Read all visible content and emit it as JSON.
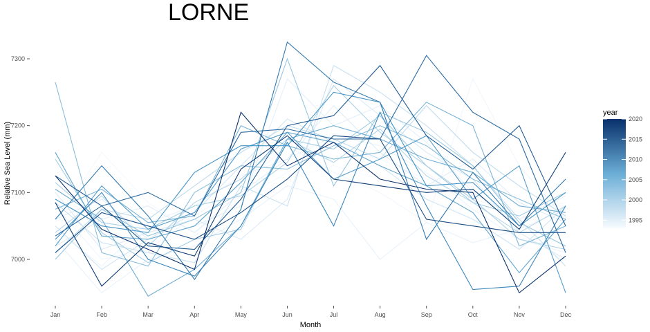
{
  "chart_data": {
    "type": "line",
    "title": "LORNE",
    "xlabel": "Month",
    "ylabel": "Relative Sea Level (mm)",
    "categories": [
      "Jan",
      "Feb",
      "Mar",
      "Apr",
      "May",
      "Jun",
      "Jul",
      "Aug",
      "Sep",
      "Oct",
      "Nov",
      "Dec"
    ],
    "yticks": [
      7000,
      7100,
      7200,
      7300
    ],
    "ylim": [
      6935,
      7335
    ],
    "grid": false,
    "legend": {
      "title": "year",
      "placement": "right",
      "ticks": [
        1995,
        2000,
        2005,
        2010,
        2015,
        2020
      ],
      "range": [
        1993,
        2020
      ],
      "color_low": "#f7fbff",
      "color_high": "#08306b"
    },
    "series": [
      {
        "year": 1993,
        "values": [
          7065,
          7045,
          7025,
          7035,
          7060,
          7120,
          7140,
          7120,
          7095,
          7060,
          7030,
          7040
        ]
      },
      {
        "year": 1994,
        "values": [
          7055,
          7160,
          7085,
          7040,
          7090,
          7130,
          7170,
          7150,
          7120,
          7090,
          7070,
          7085
        ]
      },
      {
        "year": 1995,
        "values": [
          7080,
          7000,
          7015,
          7065,
          7110,
          7170,
          7130,
          7100,
          7055,
          7270,
          7140,
          7060
        ]
      },
      {
        "year": 1996,
        "values": [
          7045,
          6990,
          7055,
          7080,
          7125,
          7150,
          7185,
          7170,
          7130,
          7075,
          7030,
          7010
        ]
      },
      {
        "year": 1997,
        "values": [
          7030,
          6950,
          7000,
          7020,
          7060,
          7110,
          7090,
          7000,
          7055,
          7025,
          7045,
          7075
        ]
      },
      {
        "year": 1998,
        "values": [
          7060,
          7090,
          7030,
          7050,
          7080,
          7270,
          7200,
          7230,
          7175,
          7100,
          7060,
          7095
        ]
      },
      {
        "year": 1999,
        "values": [
          7020,
          7060,
          7080,
          7040,
          7100,
          7150,
          7230,
          7160,
          7110,
          7150,
          7085,
          7055
        ]
      },
      {
        "year": 2000,
        "values": [
          7100,
          7015,
          7040,
          7060,
          7030,
          7090,
          7270,
          7215,
          7160,
          7120,
          7040,
          7000
        ]
      },
      {
        "year": 2001,
        "values": [
          7050,
          6985,
          7030,
          7070,
          7140,
          7210,
          7175,
          7140,
          7090,
          7060,
          7015,
          7080
        ]
      },
      {
        "year": 2002,
        "values": [
          7085,
          7025,
          7010,
          6995,
          7110,
          7080,
          7290,
          7250,
          7200,
          7140,
          7060,
          6990
        ]
      },
      {
        "year": 2003,
        "values": [
          7010,
          7075,
          7060,
          7110,
          7160,
          7200,
          7180,
          7150,
          7230,
          7160,
          7110,
          7065
        ]
      },
      {
        "year": 2004,
        "values": [
          7040,
          7095,
          7020,
          7085,
          7120,
          7180,
          7145,
          7195,
          7125,
          7085,
          7040,
          7080
        ]
      },
      {
        "year": 2005,
        "values": [
          7115,
          7055,
          7045,
          7080,
          7095,
          7145,
          7260,
          7190,
          7140,
          7090,
          7030,
          7015
        ]
      },
      {
        "year": 2006,
        "values": [
          7150,
          7040,
          6995,
          7030,
          7045,
          7180,
          7165,
          7215,
          7140,
          7085,
          7065,
          7100
        ]
      },
      {
        "year": 2007,
        "values": [
          7000,
          7075,
          7035,
          7060,
          7100,
          7300,
          7110,
          7220,
          7190,
          7140,
          7055,
          7020
        ]
      },
      {
        "year": 2008,
        "values": [
          7265,
          7010,
          6990,
          7100,
          7140,
          7135,
          7170,
          7200,
          7170,
          7120,
          7090,
          7060
        ]
      },
      {
        "year": 2009,
        "values": [
          7075,
          7105,
          7055,
          7065,
          7200,
          7170,
          7150,
          7160,
          7235,
          7200,
          7020,
          7050
        ]
      },
      {
        "year": 2010,
        "values": [
          7105,
          7060,
          6945,
          6985,
          7050,
          7180,
          7200,
          7180,
          7150,
          7130,
          7080,
          7070
        ]
      },
      {
        "year": 2011,
        "values": [
          7160,
          7035,
          7030,
          7050,
          7115,
          7190,
          7175,
          7140,
          7110,
          7070,
          6980,
          7060
        ]
      },
      {
        "year": 2012,
        "values": [
          7020,
          7110,
          7045,
          7070,
          7165,
          7190,
          7120,
          7150,
          7185,
          7090,
          7140,
          6950
        ]
      },
      {
        "year": 2013,
        "values": [
          7090,
          7050,
          7040,
          7130,
          7170,
          7170,
          7250,
          7235,
          7110,
          7115,
          7050,
          7100
        ]
      },
      {
        "year": 2014,
        "values": [
          7030,
          7100,
          7000,
          6975,
          7050,
          7175,
          7050,
          7220,
          7080,
          6955,
          6960,
          7080
        ]
      },
      {
        "year": 2015,
        "values": [
          7060,
          7140,
          7065,
          6970,
          7075,
          7325,
          7265,
          7235,
          7030,
          7130,
          7050,
          7120
        ]
      },
      {
        "year": 2016,
        "values": [
          7035,
          7080,
          7100,
          7065,
          7190,
          7195,
          7180,
          7180,
          7305,
          7220,
          7180,
          7010
        ]
      },
      {
        "year": 2017,
        "values": [
          7125,
          7080,
          7020,
          7015,
          7090,
          7200,
          7215,
          7290,
          7185,
          7135,
          7200,
          7050
        ]
      },
      {
        "year": 2018,
        "values": [
          7010,
          7070,
          7050,
          7030,
          7070,
          7120,
          7185,
          7180,
          7060,
          7050,
          7040,
          7040
        ]
      },
      {
        "year": 2019,
        "values": [
          7085,
          6960,
          7025,
          7005,
          7135,
          7185,
          7120,
          7110,
          7100,
          7105,
          7045,
          7160
        ]
      },
      {
        "year": 2020,
        "values": [
          7125,
          7045,
          7015,
          6985,
          7220,
          7140,
          7175,
          7120,
          7105,
          7100,
          6950,
          7005
        ]
      }
    ]
  }
}
